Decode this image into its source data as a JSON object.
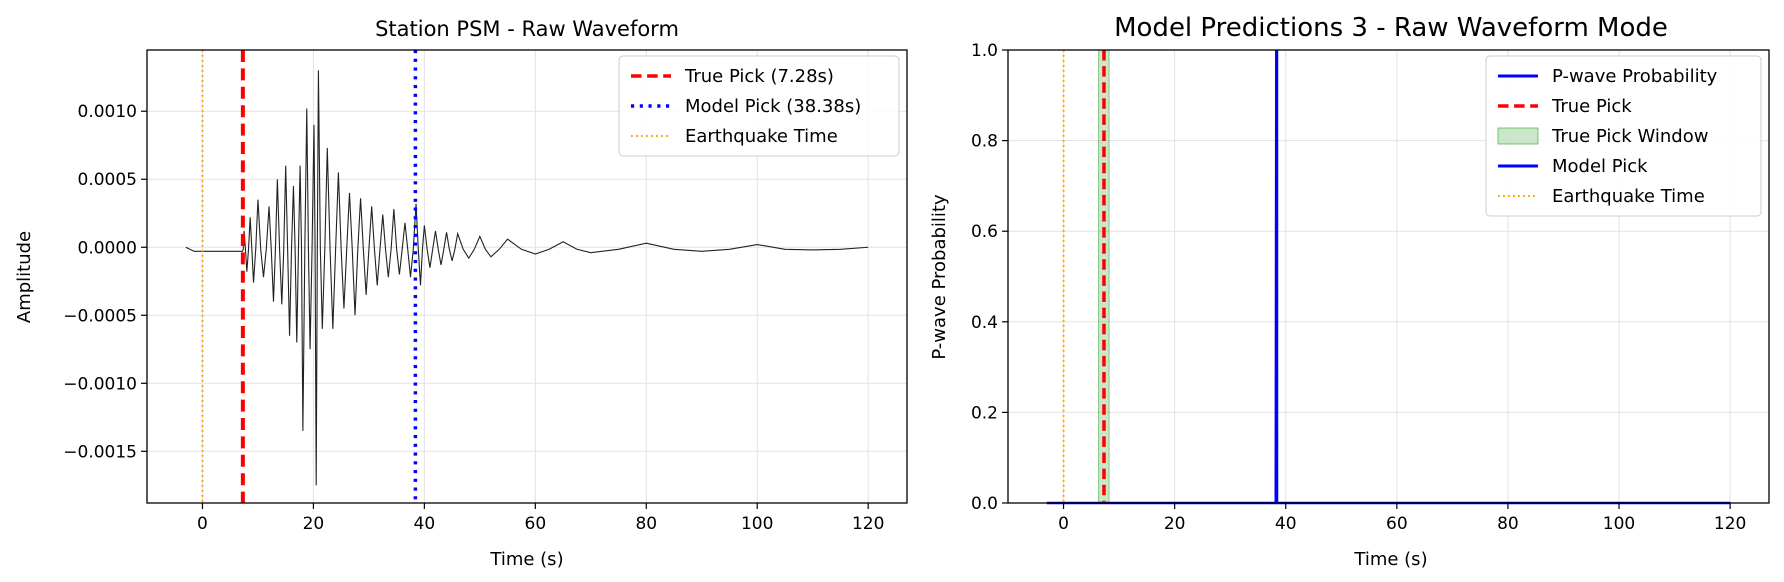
{
  "chart_data": [
    {
      "type": "line",
      "title": "Station PSM - Raw Waveform",
      "xlabel": "Time (s)",
      "ylabel": "Amplitude",
      "xlim": [
        -10,
        127
      ],
      "ylim": [
        -0.00188,
        0.00145
      ],
      "xticks": [
        0,
        20,
        40,
        60,
        80,
        100,
        120
      ],
      "xtick_labels": [
        "0",
        "20",
        "40",
        "60",
        "80",
        "100",
        "120"
      ],
      "yticks": [
        0.001,
        0.0005,
        0.0,
        -0.0005,
        -0.001,
        -0.0015
      ],
      "ytick_labels": [
        "0.0010",
        "0.0005",
        "0.0000",
        "−0.0005",
        "−0.0010",
        "−0.0015"
      ],
      "grid": true,
      "legend_position": "top-right",
      "waveform": {
        "color": "#222222",
        "start": -3,
        "end": 120,
        "baseline": -3e-05,
        "peaks": [
          [
            7.5,
            0.00012
          ],
          [
            8.0,
            -0.00018
          ],
          [
            8.6,
            0.00022
          ],
          [
            9.2,
            -0.00026
          ],
          [
            10.0,
            0.00035
          ],
          [
            11.0,
            -0.00022
          ],
          [
            12.0,
            0.0003
          ],
          [
            12.8,
            -0.0004
          ],
          [
            13.5,
            0.0005
          ],
          [
            14.3,
            -0.00042
          ],
          [
            15.0,
            0.0006
          ],
          [
            15.7,
            -0.00065
          ],
          [
            16.4,
            0.00045
          ],
          [
            17.0,
            -0.0007
          ],
          [
            17.6,
            0.0006
          ],
          [
            18.1,
            -0.00135
          ],
          [
            18.8,
            0.00102
          ],
          [
            19.4,
            -0.00075
          ],
          [
            20.1,
            0.0009
          ],
          [
            20.5,
            -0.00175
          ],
          [
            20.9,
            0.0013
          ],
          [
            21.6,
            -0.0006
          ],
          [
            22.5,
            0.00073
          ],
          [
            23.5,
            -0.0006
          ],
          [
            24.5,
            0.00055
          ],
          [
            25.5,
            -0.00045
          ],
          [
            26.5,
            0.0004
          ],
          [
            27.5,
            -0.0005
          ],
          [
            28.5,
            0.00036
          ],
          [
            29.5,
            -0.00035
          ],
          [
            30.5,
            0.0003
          ],
          [
            31.5,
            -0.00028
          ],
          [
            32.5,
            0.00024
          ],
          [
            33.5,
            -0.00022
          ],
          [
            34.5,
            0.00028
          ],
          [
            35.5,
            -0.0002
          ],
          [
            36.5,
            0.00018
          ],
          [
            37.5,
            -0.00022
          ],
          [
            38.5,
            0.00032
          ],
          [
            39.3,
            -0.00028
          ],
          [
            40.0,
            0.00016
          ],
          [
            41.0,
            -0.00015
          ],
          [
            42.0,
            0.00012
          ],
          [
            43.0,
            -0.00013
          ],
          [
            44.0,
            0.00011
          ],
          [
            45.0,
            -0.0001
          ],
          [
            46.0,
            0.0001
          ],
          [
            48.0,
            -8e-05
          ],
          [
            50.0,
            8e-05
          ],
          [
            52.0,
            -7e-05
          ],
          [
            55.0,
            6e-05
          ],
          [
            60.0,
            -5e-05
          ],
          [
            65.0,
            4e-05
          ],
          [
            70.0,
            -4e-05
          ],
          [
            80.0,
            3e-05
          ],
          [
            90.0,
            -3e-05
          ],
          [
            100.0,
            2e-05
          ],
          [
            110.0,
            -2e-05
          ],
          [
            120.0,
            0.0
          ]
        ]
      },
      "vlines": [
        {
          "name": "True Pick (7.28s)",
          "x": 7.28,
          "color": "#ff0000",
          "style": "dashed",
          "width": 4
        },
        {
          "name": "Model Pick (38.38s)",
          "x": 38.38,
          "color": "#0000ff",
          "style": "dotted",
          "width": 3.5
        },
        {
          "name": "Earthquake Time",
          "x": 0,
          "color": "#ffa500",
          "style": "dotted",
          "width": 2
        }
      ],
      "legend": [
        "True Pick (7.28s)",
        "Model Pick (38.38s)",
        "Earthquake Time"
      ]
    },
    {
      "type": "line",
      "title": "Model Predictions 3 - Raw Waveform Mode",
      "xlabel": "Time (s)",
      "ylabel": "P-wave Probability",
      "xlim": [
        -10,
        127
      ],
      "ylim": [
        0,
        1
      ],
      "xticks": [
        0,
        20,
        40,
        60,
        80,
        100,
        120
      ],
      "xtick_labels": [
        "0",
        "20",
        "40",
        "60",
        "80",
        "100",
        "120"
      ],
      "yticks": [
        0.0,
        0.2,
        0.4,
        0.6,
        0.8,
        1.0
      ],
      "ytick_labels": [
        "0.0",
        "0.2",
        "0.4",
        "0.6",
        "0.8",
        "1.0"
      ],
      "grid": true,
      "legend_position": "top-right",
      "probability_series": {
        "name": "P-wave Probability",
        "color": "#0000ff",
        "x": [
          -3,
          38.2,
          38.3,
          38.4,
          120
        ],
        "values": [
          0.0,
          0.0,
          1.0,
          0.0,
          0.0
        ]
      },
      "true_pick_window": {
        "name": "True Pick Window",
        "x0": 6.3,
        "x1": 8.2,
        "color": "#2ca02c",
        "opacity": 0.25
      },
      "vlines": [
        {
          "name": "True Pick",
          "x": 7.28,
          "color": "#ff0000",
          "style": "dashed",
          "width": 3.5
        },
        {
          "name": "Model Pick",
          "x": 38.38,
          "color": "#0000ff",
          "style": "solid",
          "width": 3
        },
        {
          "name": "Earthquake Time",
          "x": 0,
          "color": "#ffa500",
          "style": "dotted",
          "width": 2
        }
      ],
      "legend": [
        "P-wave Probability",
        "True Pick",
        "True Pick Window",
        "Model Pick",
        "Earthquake Time"
      ]
    }
  ]
}
